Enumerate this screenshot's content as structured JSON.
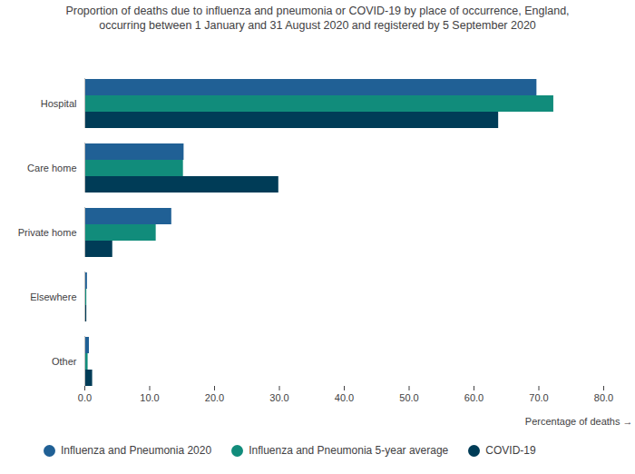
{
  "chart_data": {
    "type": "bar",
    "orientation": "horizontal",
    "title": "Proportion of deaths due to influenza and pneumonia or COVID-19 by place of occurrence, England, occurring between 1 January and 31 August 2020 and registered by 5 September 2020",
    "x_label": "Percentage of deaths",
    "categories": [
      "Hospital",
      "Care home",
      "Private home",
      "Elsewhere",
      "Other"
    ],
    "series": [
      {
        "name": "Influenza and Pneumonia 2020",
        "color": "#206095",
        "values": [
          69.7,
          15.3,
          13.4,
          0.4,
          0.7
        ]
      },
      {
        "name": "Influenza and Pneumonia 5-year average",
        "color": "#118c7b",
        "values": [
          72.3,
          15.2,
          11.0,
          0.3,
          0.5
        ]
      },
      {
        "name": "COVID-19",
        "color": "#003c57",
        "values": [
          63.8,
          29.9,
          4.3,
          0.3,
          1.2
        ]
      }
    ],
    "xlim": [
      0,
      80
    ],
    "xticks": [
      {
        "value": 0,
        "label": "0.0"
      },
      {
        "value": 10,
        "label": "10.0"
      },
      {
        "value": 20,
        "label": "20.0"
      },
      {
        "value": 30,
        "label": "30.0"
      },
      {
        "value": 40,
        "label": "40.0"
      },
      {
        "value": 50,
        "label": "50.0"
      },
      {
        "value": 60,
        "label": "60.0"
      },
      {
        "value": 70,
        "label": "70.0"
      },
      {
        "value": 80,
        "label": "80.0"
      }
    ],
    "grid": false,
    "legend": "bottom"
  }
}
